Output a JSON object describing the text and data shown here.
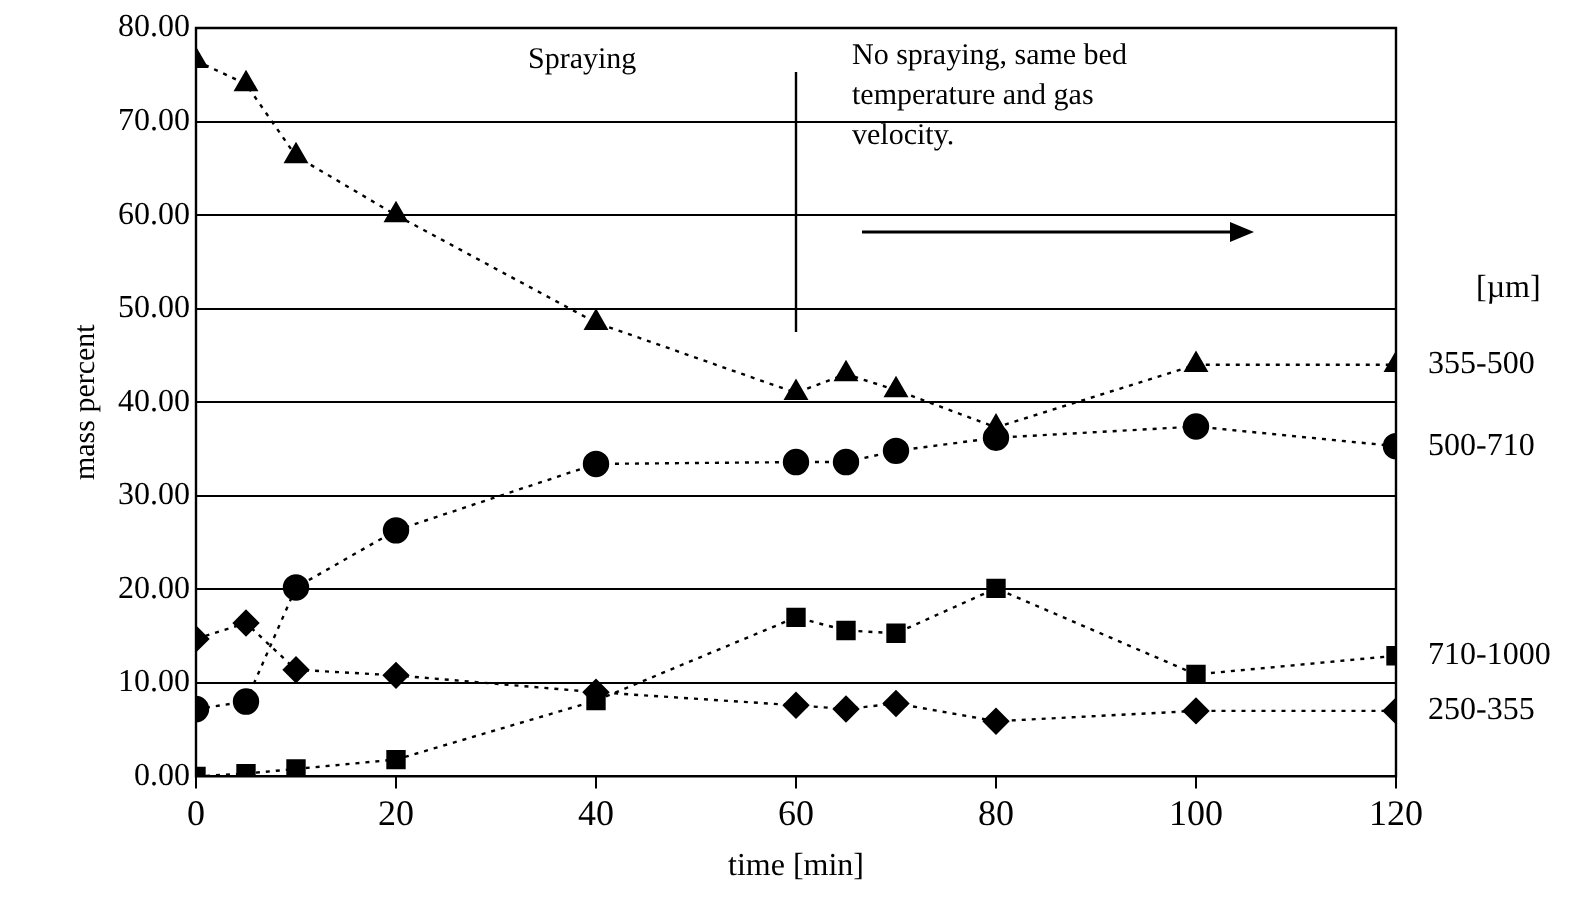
{
  "chart_data": {
    "type": "line",
    "xlabel": "time [min]",
    "ylabel": "mass percent",
    "legend_title": "[µm]",
    "x": [
      0,
      5,
      10,
      20,
      40,
      60,
      65,
      70,
      80,
      100,
      120
    ],
    "series": [
      {
        "name": "355-500",
        "color": "#000000",
        "marker": "triangle",
        "values": [
          76.5,
          74,
          66.3,
          60,
          48.5,
          41,
          43,
          41.3,
          37.3,
          44,
          44
        ]
      },
      {
        "name": "500-710",
        "color": "#000000",
        "marker": "circle",
        "values": [
          7.2,
          8,
          20.2,
          26.3,
          33.4,
          33.6,
          33.6,
          34.8,
          36.2,
          37.4,
          35.3
        ]
      },
      {
        "name": "710-1000",
        "color": "#000000",
        "marker": "square",
        "values": [
          0,
          0.3,
          0.8,
          1.8,
          8.1,
          17,
          15.6,
          15.3,
          20.1,
          10.9,
          12.9
        ]
      },
      {
        "name": "250-355",
        "color": "#000000",
        "marker": "diamond",
        "values": [
          14.7,
          16.4,
          11.4,
          10.8,
          9,
          7.6,
          7.2,
          7.8,
          5.9,
          7,
          7
        ]
      }
    ],
    "xlim": [
      0,
      120
    ],
    "xticks": [
      0,
      20,
      40,
      60,
      80,
      100,
      120
    ],
    "ylim": [
      0,
      80
    ],
    "yticks": [
      {
        "value": 0,
        "label": "0.00"
      },
      {
        "value": 10,
        "label": "10.00"
      },
      {
        "value": 20,
        "label": "20.00"
      },
      {
        "value": 30,
        "label": "30.00"
      },
      {
        "value": 40,
        "label": "40.00"
      },
      {
        "value": 50,
        "label": "50.00"
      },
      {
        "value": 60,
        "label": "60.00"
      },
      {
        "value": 70,
        "label": "70.00"
      },
      {
        "value": 80,
        "label": "80.00"
      }
    ],
    "grid": "y",
    "line_style": "dotted",
    "legend": false,
    "ref_lines": [
      {
        "axis": "x",
        "value": 60
      }
    ],
    "annotations": [
      "Spraying",
      "No spraying, same bed temperature and gas velocity."
    ]
  }
}
